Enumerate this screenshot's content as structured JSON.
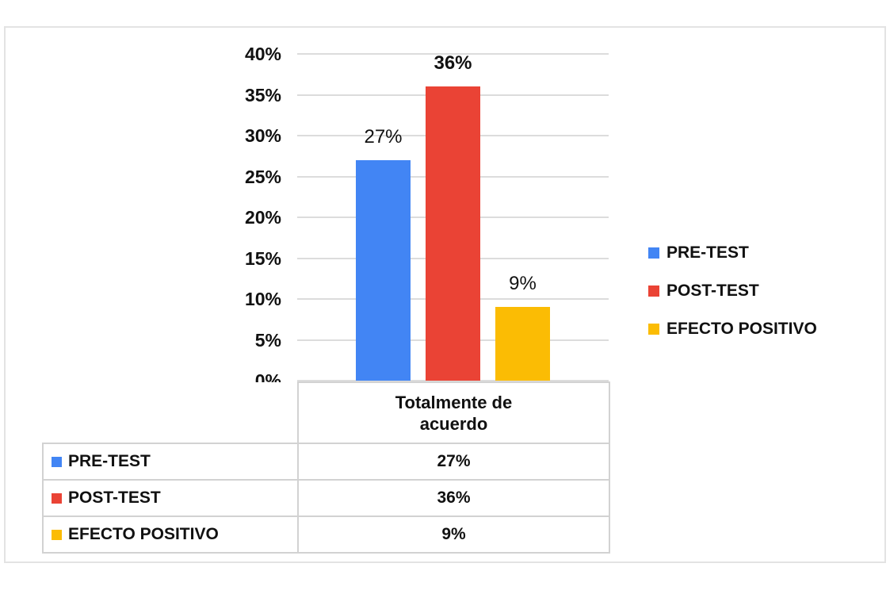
{
  "chart_data": {
    "type": "bar",
    "title": "",
    "xlabel": "",
    "ylabel": "",
    "categories": [
      "Totalmente de acuerdo"
    ],
    "category_display": "Totalmente de\nacuerdo",
    "series": [
      {
        "name": "PRE-TEST",
        "values": [
          27
        ],
        "color": "#4285F4",
        "data_label": "27%",
        "data_label_bold": false
      },
      {
        "name": "POST-TEST",
        "values": [
          36
        ],
        "color": "#EA4335",
        "data_label": "36%",
        "data_label_bold": true
      },
      {
        "name": "EFECTO POSITIVO",
        "values": [
          9
        ],
        "color": "#FBBC04",
        "data_label": "9%",
        "data_label_bold": false
      }
    ],
    "ylim": [
      0,
      40
    ],
    "ytick_step": 5,
    "yticks": [
      "0%",
      "5%",
      "10%",
      "15%",
      "20%",
      "25%",
      "30%",
      "35%",
      "40%"
    ],
    "grid": true,
    "legend_position": "right",
    "data_table": {
      "header": "Totalmente de acuerdo",
      "rows": [
        {
          "label": "PRE-TEST",
          "value": "27%"
        },
        {
          "label": "POST-TEST",
          "value": "36%"
        },
        {
          "label": "EFECTO POSITIVO",
          "value": "9%"
        }
      ]
    }
  },
  "colors": {
    "grid": "#DCDCDC",
    "table_border": "#D2D2D2",
    "frame_border": "#E3E3E3",
    "text": "#111111"
  }
}
